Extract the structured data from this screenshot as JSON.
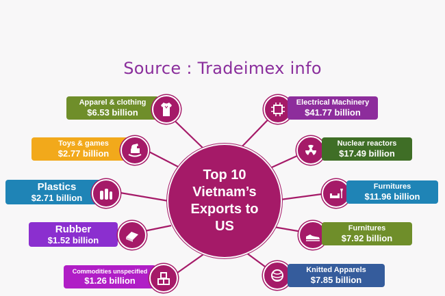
{
  "source": "Source : Tradeimex info",
  "hub": "Top 10\nVietnam’s\nExports to\nUS",
  "colors": {
    "hub": "#a51a68",
    "olive": "#6f8e2a",
    "orange": "#f2a91b",
    "blue": "#1f84b6",
    "purple": "#8b2fcf",
    "darkgreen": "#3f6e26",
    "magenta": "#b01ec6",
    "violet": "#8d2d9c",
    "navy": "#355c9c"
  },
  "items": {
    "apparel": {
      "label": "Apparel & clothing",
      "value": "$6.53 billion",
      "icon": "shirt-icon"
    },
    "toys": {
      "label": "Toys & games",
      "value": "$2.77 billion",
      "icon": "rocking-horse-icon"
    },
    "plastics": {
      "label": "Plastics",
      "value": "$2.71 billion",
      "icon": "bottles-icon"
    },
    "rubber": {
      "label": "Rubber",
      "value": "$1.52 billion",
      "icon": "eraser-icon"
    },
    "commodities": {
      "label": "Commodities unspecified",
      "value": "$1.26 billion",
      "icon": "boxes-icon"
    },
    "electrical": {
      "label": "Electrical Machinery",
      "value": "$41.77 billion",
      "icon": "chip-icon"
    },
    "nuclear": {
      "label": "Nuclear reactors",
      "value": "$17.49 billion",
      "icon": "radiation-icon"
    },
    "furn1": {
      "label": "Furnitures",
      "value": "$11.96 billion",
      "icon": "sofa-lamp-icon"
    },
    "furn2": {
      "label": "Furnitures",
      "value": "$7.92 billion",
      "icon": "shoe-icon"
    },
    "knitted": {
      "label": "Knitted Apparels",
      "value": "$7.85 billion",
      "icon": "yarn-icon"
    }
  }
}
